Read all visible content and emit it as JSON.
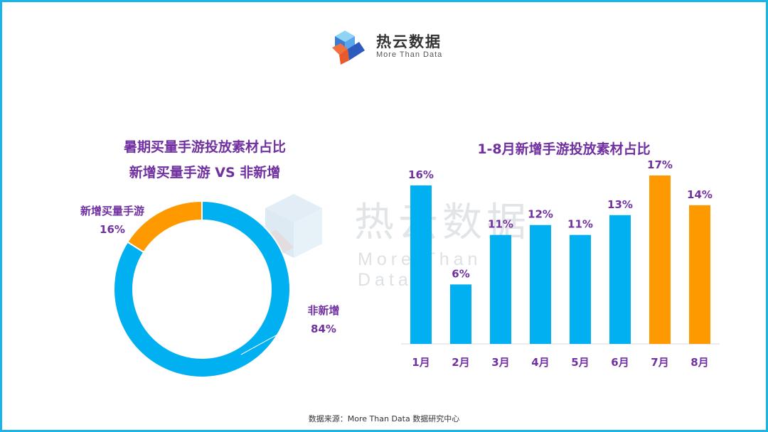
{
  "brand": {
    "name": "热云数据",
    "tagline": "More Than Data"
  },
  "source": "数据来源：More Than Data 数据研究中心",
  "chart_data": [
    {
      "type": "pie",
      "title": "暑期买量手游投放素材占比",
      "subtitle": "新增买量手游 VS 非新增",
      "categories": [
        "新增买量手游",
        "非新增"
      ],
      "values": [
        16,
        84
      ],
      "value_labels": [
        "16%",
        "84%"
      ],
      "colors": [
        "#ff9900",
        "#00b0f0"
      ],
      "unit": "%"
    },
    {
      "type": "bar",
      "title": "1-8月新增手游投放素材占比",
      "categories": [
        "1月",
        "2月",
        "3月",
        "4月",
        "5月",
        "6月",
        "7月",
        "8月"
      ],
      "values": [
        16,
        6,
        11,
        12,
        11,
        13,
        17,
        14
      ],
      "value_labels": [
        "16%",
        "6%",
        "11%",
        "12%",
        "11%",
        "13%",
        "17%",
        "14%"
      ],
      "bar_colors": [
        "#00b0f0",
        "#00b0f0",
        "#00b0f0",
        "#00b0f0",
        "#00b0f0",
        "#00b0f0",
        "#ff9900",
        "#ff9900"
      ],
      "unit": "%",
      "grid": false,
      "legend": "none"
    }
  ]
}
